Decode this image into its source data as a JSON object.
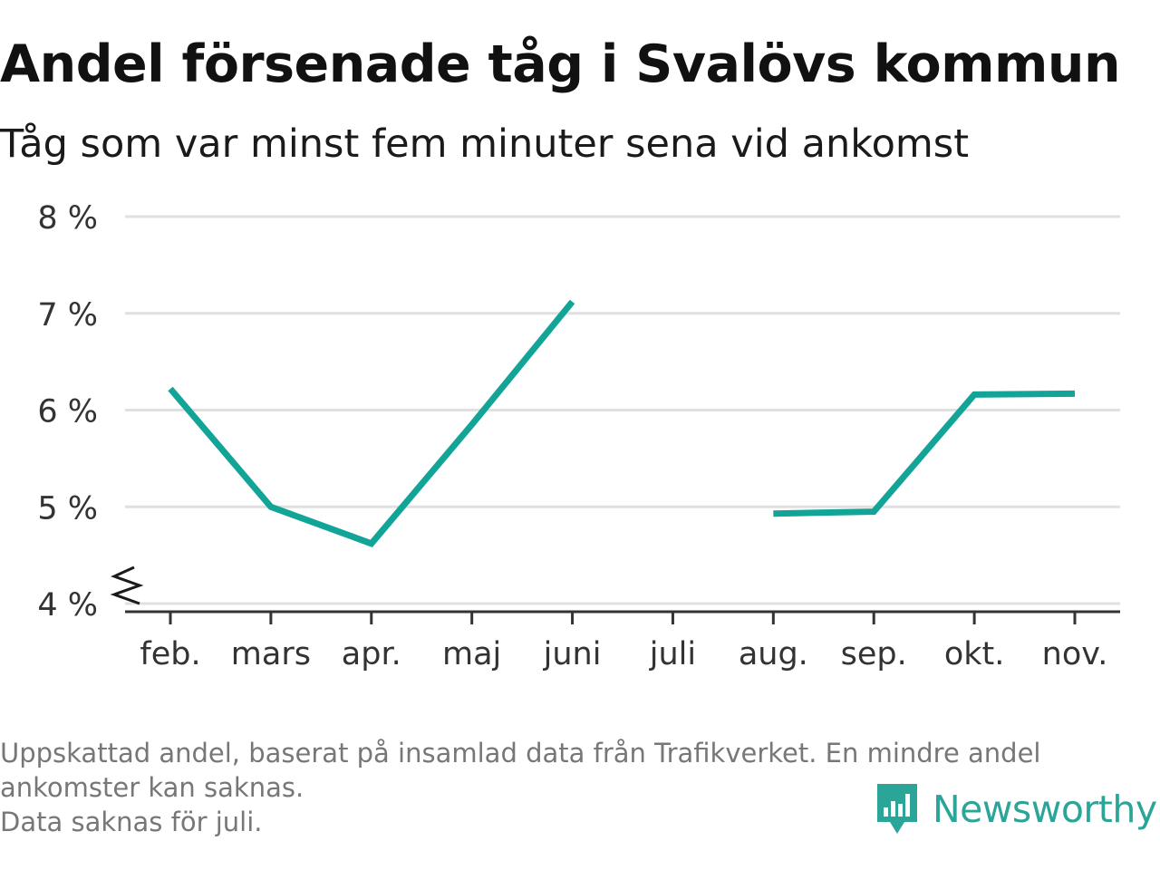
{
  "header": {
    "title": "Andel försenade tåg i Svalövs kommun",
    "subtitle": "Tåg som var minst fem minuter sena vid ankomst"
  },
  "chart_data": {
    "type": "line",
    "title": "Andel försenade tåg i Svalövs kommun",
    "subtitle": "Tåg som var minst fem minuter sena vid ankomst",
    "categories": [
      "feb.",
      "mars",
      "apr.",
      "maj",
      "juni",
      "juli",
      "aug.",
      "sep.",
      "okt.",
      "nov."
    ],
    "series": [
      {
        "values": [
          6.22,
          5.0,
          4.62,
          5.85,
          7.12,
          null,
          4.93,
          4.95,
          6.16,
          6.17
        ]
      }
    ],
    "y_ticks": [
      4,
      5,
      6,
      7,
      8
    ],
    "y_tick_labels": [
      "4 %",
      "5 %",
      "6 %",
      "7 %",
      "8 %"
    ],
    "ylim": [
      4,
      8
    ],
    "y_axis_break": true,
    "grid": true,
    "legend": "none",
    "line_color": "#12a597",
    "grid_color": "#e0e0e0",
    "axis_color": "#333333"
  },
  "footnote": {
    "line1": "Uppskattad andel, baserat på insamlad data från Trafikverket. En mindre andel",
    "line2": "ankomster kan saknas.",
    "line3": "Data saknas för juli."
  },
  "brand": {
    "name": "Newsworthy",
    "logo_icon": "bar-chart-speech-bubble-icon",
    "color": "#2ba597"
  }
}
